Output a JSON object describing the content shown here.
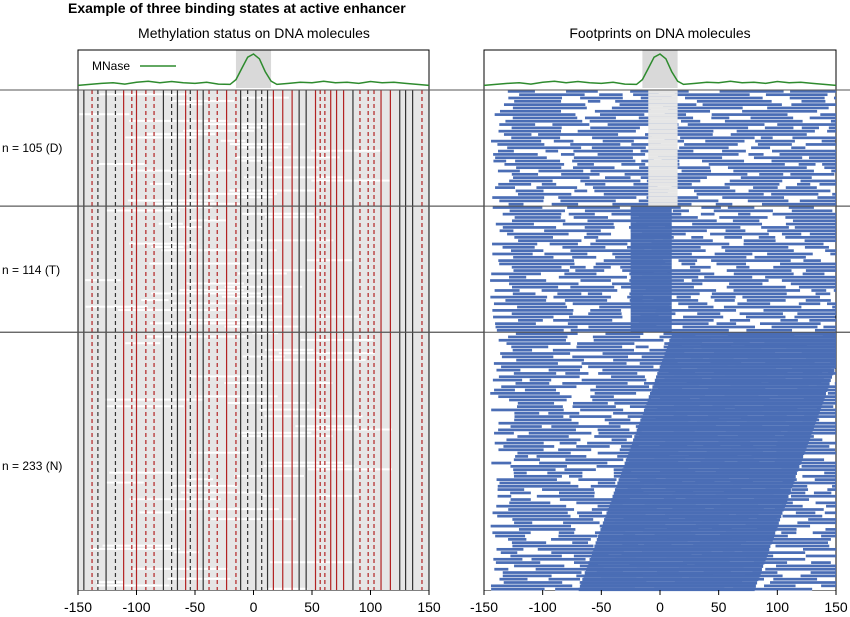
{
  "figure": {
    "title": "Example of three binding states at active enhancer"
  },
  "colors": {
    "mnase_line": "#2e8b2e",
    "center_band": "#d9d9d9",
    "molecule_bg": "#e6e6e6",
    "methylated": "#b22222",
    "unmethylated": "#333333",
    "footprint": "#4a6db5",
    "separator": "#555555"
  },
  "chart_data": [
    {
      "type": "heatmap",
      "title": "Methylation status on DNA molecules",
      "xlim": [
        -150,
        150
      ],
      "x_ticks": [
        -150,
        -100,
        -50,
        0,
        50,
        100,
        150
      ],
      "legend": {
        "label": "MNase",
        "placement": "top-left"
      },
      "mnase_profile": {
        "x": [
          -150,
          -140,
          -130,
          -120,
          -110,
          -100,
          -90,
          -80,
          -70,
          -60,
          -50,
          -40,
          -30,
          -20,
          -15,
          -10,
          -5,
          0,
          5,
          10,
          15,
          20,
          30,
          40,
          50,
          60,
          70,
          80,
          90,
          100,
          110,
          120,
          130,
          140,
          150
        ],
        "y": [
          0.02,
          0.05,
          0.08,
          0.1,
          0.06,
          0.12,
          0.15,
          0.1,
          0.14,
          0.1,
          0.08,
          0.12,
          0.06,
          0.05,
          0.2,
          0.55,
          0.9,
          1.0,
          0.85,
          0.45,
          0.15,
          0.05,
          0.08,
          0.12,
          0.1,
          0.15,
          0.1,
          0.12,
          0.08,
          0.14,
          0.1,
          0.12,
          0.08,
          0.05,
          0.02
        ]
      },
      "groups": [
        {
          "label": "n = 105 (D)",
          "n": 105
        },
        {
          "label": "n = 114 (T)",
          "n": 114
        },
        {
          "label": "n = 233 (N)",
          "n": 233
        }
      ]
    },
    {
      "type": "heatmap",
      "title": "Footprints on DNA molecules",
      "xlim": [
        -150,
        150
      ],
      "x_ticks": [
        -150,
        -100,
        -50,
        0,
        50,
        100,
        150
      ],
      "mnase_profile": {
        "x": [
          -150,
          -140,
          -130,
          -120,
          -110,
          -100,
          -90,
          -80,
          -70,
          -60,
          -50,
          -40,
          -30,
          -20,
          -15,
          -10,
          -5,
          0,
          5,
          10,
          15,
          20,
          30,
          40,
          50,
          60,
          70,
          80,
          90,
          100,
          110,
          120,
          130,
          140,
          150
        ],
        "y": [
          0.02,
          0.05,
          0.08,
          0.1,
          0.06,
          0.12,
          0.15,
          0.1,
          0.14,
          0.1,
          0.08,
          0.12,
          0.06,
          0.05,
          0.2,
          0.55,
          0.9,
          1.0,
          0.85,
          0.45,
          0.15,
          0.05,
          0.08,
          0.12,
          0.1,
          0.15,
          0.1,
          0.12,
          0.08,
          0.14,
          0.1,
          0.12,
          0.08,
          0.05,
          0.02
        ]
      },
      "groups": [
        {
          "label": "n = 105 (D)",
          "n": 105
        },
        {
          "label": "n = 114 (T)",
          "n": 114
        },
        {
          "label": "n = 233 (N)",
          "n": 233
        }
      ]
    }
  ]
}
